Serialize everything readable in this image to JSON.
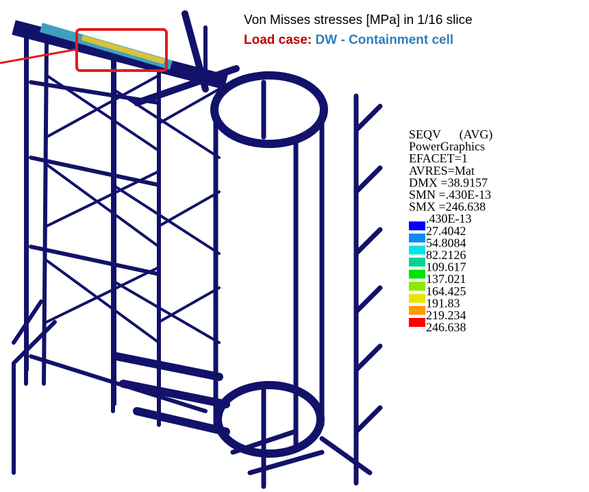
{
  "title": "Von Misses stresses [MPa] in 1/16 slice",
  "load_case": {
    "label": "Load case:",
    "value": "DW - Containment cell"
  },
  "legend": {
    "header": [
      "SEQV      (AVG)",
      "PowerGraphics",
      "EFACET=1",
      "AVRES=Mat",
      "DMX =38.9157",
      "SMN =.430E-13",
      "SMX =246.638"
    ],
    "levels": [
      ".430E-13",
      "27.4042",
      "54.8084",
      "82.2126",
      "109.617",
      "137.021",
      "164.425",
      "191.83",
      "219.234",
      "246.638"
    ],
    "colors": [
      "#0000ff",
      "#0a8cf0",
      "#00e6e6",
      "#00d495",
      "#00e600",
      "#90e600",
      "#e6e600",
      "#ff9a00",
      "#ff0000"
    ]
  }
}
